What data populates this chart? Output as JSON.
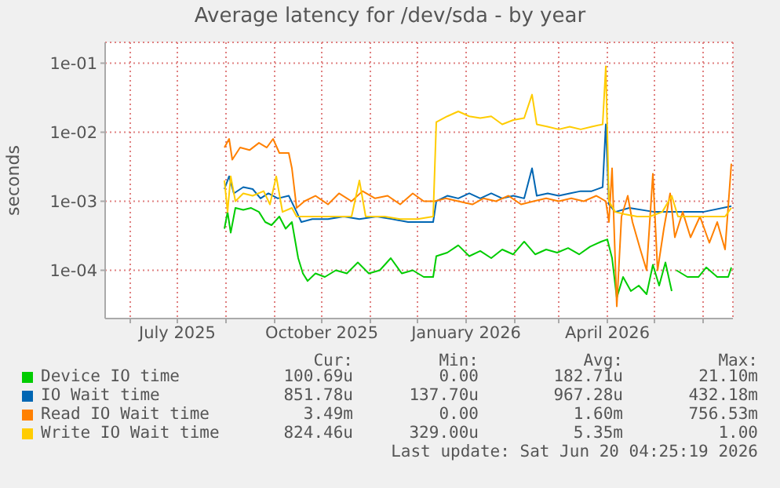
{
  "chart_data": {
    "type": "line",
    "title": "Average latency for /dev/sda - by year",
    "ylabel": "seconds",
    "log": "y",
    "grid": true,
    "legend": "bottom",
    "xlim": [
      "2025-05-16",
      "2026-06-20"
    ],
    "xticks": [
      {
        "value": "2025-06-01",
        "label": null
      },
      {
        "value": "2025-07-01",
        "label": "July 2025"
      },
      {
        "value": "2025-08-01",
        "label": null
      },
      {
        "value": "2025-09-01",
        "label": null
      },
      {
        "value": "2025-10-01",
        "label": "October 2025"
      },
      {
        "value": "2025-11-01",
        "label": null
      },
      {
        "value": "2025-12-01",
        "label": null
      },
      {
        "value": "2026-01-01",
        "label": "January 2026"
      },
      {
        "value": "2026-02-01",
        "label": null
      },
      {
        "value": "2026-03-01",
        "label": null
      },
      {
        "value": "2026-04-01",
        "label": "April 2026"
      },
      {
        "value": "2026-05-01",
        "label": null
      },
      {
        "value": "2026-06-01",
        "label": null
      }
    ],
    "ylim": [
      2e-05,
      0.2
    ],
    "yticks": [
      {
        "value": 0.1,
        "label": "1e-01"
      },
      {
        "value": 0.01,
        "label": "1e-02"
      },
      {
        "value": 0.001,
        "label": "1e-03"
      },
      {
        "value": 0.0001,
        "label": "1e-04"
      }
    ],
    "series": [
      {
        "name": "Device IO time",
        "color": "#00cc00",
        "x": [
          "2025-07-31",
          "2025-08-02",
          "2025-08-04",
          "2025-08-07",
          "2025-08-12",
          "2025-08-17",
          "2025-08-22",
          "2025-08-26",
          "2025-08-30",
          "2025-09-04",
          "2025-09-08",
          "2025-09-12",
          "2025-09-16",
          "2025-09-19",
          "2025-09-22",
          "2025-09-27",
          "2025-10-03",
          "2025-10-10",
          "2025-10-17",
          "2025-10-24",
          "2025-10-31",
          "2025-11-07",
          "2025-11-14",
          "2025-11-21",
          "2025-11-28",
          "2025-12-05",
          "2025-12-11",
          "2025-12-13",
          "2025-12-20",
          "2025-12-27",
          "2026-01-03",
          "2026-01-10",
          "2026-01-17",
          "2026-01-24",
          "2026-01-31",
          "2026-02-07",
          "2026-02-14",
          "2026-02-21",
          "2026-02-28",
          "2026-03-07",
          "2026-03-14",
          "2026-03-21",
          "2026-03-28",
          "2026-04-01",
          "2026-04-04",
          "2026-04-07",
          "2026-04-11",
          "2026-04-16",
          "2026-04-21",
          "2026-04-26",
          "2026-04-30",
          "2026-05-04",
          "2026-05-08",
          "2026-05-12",
          "2026-05-13",
          "2026-05-15",
          "2026-05-22",
          "2026-05-29",
          "2026-06-03",
          "2026-06-10",
          "2026-06-17",
          "2026-06-19"
        ],
        "values": [
          0.0004,
          0.0007,
          0.00035,
          0.0008,
          0.00075,
          0.0008,
          0.0007,
          0.0005,
          0.00045,
          0.0006,
          0.0004,
          0.0005,
          0.00015,
          9e-05,
          7e-05,
          9e-05,
          8e-05,
          0.0001,
          9e-05,
          0.00013,
          9e-05,
          0.0001,
          0.00015,
          9e-05,
          0.0001,
          8e-05,
          8e-05,
          0.00016,
          0.00018,
          0.00023,
          0.00016,
          0.00019,
          0.00015,
          0.0002,
          0.00017,
          0.00026,
          0.00017,
          0.0002,
          0.00018,
          0.00021,
          0.00017,
          0.00022,
          0.00026,
          0.00028,
          0.00015,
          4e-05,
          8e-05,
          5e-05,
          6e-05,
          4.5e-05,
          0.00012,
          6e-05,
          0.00013,
          5e-05,
          null,
          0.0001,
          8e-05,
          8e-05,
          0.00011,
          8e-05,
          8e-05,
          0.00011
        ]
      },
      {
        "name": "IO Wait time",
        "color": "#0066b3",
        "x": [
          "2025-07-31",
          "2025-08-03",
          "2025-08-06",
          "2025-08-12",
          "2025-08-18",
          "2025-08-23",
          "2025-08-28",
          "2025-09-03",
          "2025-09-10",
          "2025-09-15",
          "2025-09-18",
          "2025-09-25",
          "2025-10-05",
          "2025-10-15",
          "2025-10-25",
          "2025-11-05",
          "2025-11-15",
          "2025-11-25",
          "2025-12-05",
          "2025-12-11",
          "2025-12-13",
          "2025-12-20",
          "2025-12-27",
          "2026-01-03",
          "2026-01-10",
          "2026-01-17",
          "2026-01-24",
          "2026-01-31",
          "2026-02-07",
          "2026-02-12",
          "2026-02-15",
          "2026-02-22",
          "2026-03-01",
          "2026-03-08",
          "2026-03-15",
          "2026-03-22",
          "2026-03-29",
          "2026-03-31",
          "2026-04-02",
          "2026-04-06",
          "2026-04-15",
          "2026-05-01",
          "2026-05-15",
          "2026-06-01",
          "2026-06-19"
        ],
        "values": [
          0.0015,
          0.0023,
          0.0013,
          0.0016,
          0.0015,
          0.0011,
          0.0013,
          0.0011,
          0.0012,
          0.0007,
          0.0005,
          0.00055,
          0.00055,
          0.0006,
          0.00055,
          0.0006,
          0.00055,
          0.0005,
          0.0005,
          0.0005,
          0.001,
          0.0012,
          0.0011,
          0.0013,
          0.0011,
          0.0013,
          0.0011,
          0.0012,
          0.0011,
          0.003,
          0.0012,
          0.0013,
          0.0012,
          0.0013,
          0.0014,
          0.0014,
          0.0016,
          0.013,
          0.0009,
          0.0007,
          0.0008,
          0.0007,
          0.0007,
          0.0007,
          0.00085
        ]
      },
      {
        "name": "Read IO Wait time",
        "color": "#ff8000",
        "x": [
          "2025-07-31",
          "2025-08-03",
          "2025-08-05",
          "2025-08-10",
          "2025-08-16",
          "2025-08-22",
          "2025-08-27",
          "2025-08-31",
          "2025-09-04",
          "2025-09-10",
          "2025-09-12",
          "2025-09-15",
          "2025-09-20",
          "2025-09-27",
          "2025-10-05",
          "2025-10-12",
          "2025-10-20",
          "2025-10-27",
          "2025-11-04",
          "2025-11-12",
          "2025-11-20",
          "2025-11-28",
          "2025-12-05",
          "2025-12-12",
          "2025-12-19",
          "2025-12-27",
          "2026-01-05",
          "2026-01-12",
          "2026-01-20",
          "2026-01-28",
          "2026-02-05",
          "2026-02-13",
          "2026-02-21",
          "2026-03-01",
          "2026-03-09",
          "2026-03-17",
          "2026-03-25",
          "2026-03-31",
          "2026-04-02",
          "2026-04-04",
          "2026-04-07",
          "2026-04-10",
          "2026-04-14",
          "2026-04-17",
          "2026-04-22",
          "2026-04-26",
          "2026-04-30",
          "2026-05-03",
          "2026-05-07",
          "2026-05-11",
          "2026-05-14",
          "2026-05-19",
          "2026-05-24",
          "2026-05-30",
          "2026-06-05",
          "2026-06-10",
          "2026-06-15",
          "2026-06-19"
        ],
        "values": [
          0.006,
          0.008,
          0.004,
          0.006,
          0.0055,
          0.007,
          0.006,
          0.008,
          0.005,
          0.005,
          0.003,
          0.0008,
          0.001,
          0.0012,
          0.0009,
          0.0013,
          0.001,
          0.0014,
          0.0011,
          0.0012,
          0.0009,
          0.0013,
          0.001,
          0.001,
          0.0011,
          0.001,
          0.0009,
          0.0011,
          0.001,
          0.0012,
          0.0009,
          0.001,
          0.0011,
          0.001,
          0.0011,
          0.001,
          0.0012,
          0.001,
          0.0005,
          0.003,
          3e-05,
          0.0006,
          0.0012,
          0.0005,
          0.0002,
          0.0001,
          0.0025,
          0.0001,
          0.0004,
          0.0013,
          0.0003,
          0.0007,
          0.0003,
          0.0006,
          0.00025,
          0.0005,
          0.0002,
          0.0035
        ]
      },
      {
        "name": "Write IO Wait time",
        "color": "#ffcc00",
        "x": [
          "2025-07-31",
          "2025-08-02",
          "2025-08-04",
          "2025-08-07",
          "2025-08-12",
          "2025-08-18",
          "2025-08-25",
          "2025-08-29",
          "2025-09-02",
          "2025-09-06",
          "2025-09-12",
          "2025-09-15",
          "2025-09-20",
          "2025-09-30",
          "2025-10-10",
          "2025-10-20",
          "2025-10-25",
          "2025-10-29",
          "2025-11-10",
          "2025-11-20",
          "2025-12-01",
          "2025-12-11",
          "2025-12-13",
          "2025-12-20",
          "2025-12-27",
          "2026-01-03",
          "2026-01-10",
          "2026-01-17",
          "2026-01-24",
          "2026-01-31",
          "2026-02-07",
          "2026-02-12",
          "2026-02-15",
          "2026-02-22",
          "2026-03-01",
          "2026-03-08",
          "2026-03-15",
          "2026-03-22",
          "2026-03-29",
          "2026-03-31",
          "2026-04-02",
          "2026-04-06",
          "2026-04-12",
          "2026-04-20",
          "2026-04-28",
          "2026-05-06",
          "2026-05-12",
          "2026-05-16",
          "2026-05-25",
          "2026-06-05",
          "2026-06-15",
          "2026-06-19"
        ],
        "values": [
          0.002,
          0.0007,
          0.0023,
          0.001,
          0.0013,
          0.0012,
          0.0014,
          0.0009,
          0.0023,
          0.0007,
          0.0008,
          0.0006,
          0.0006,
          0.0006,
          0.0006,
          0.0006,
          0.002,
          0.0006,
          0.0006,
          0.00055,
          0.00055,
          0.0006,
          0.014,
          0.017,
          0.02,
          0.017,
          0.016,
          0.017,
          0.013,
          0.015,
          0.016,
          0.035,
          0.013,
          0.012,
          0.011,
          0.012,
          0.011,
          0.012,
          0.013,
          0.09,
          0.001,
          0.0007,
          0.00065,
          0.0006,
          0.0006,
          0.0007,
          0.0012,
          0.0006,
          0.0006,
          0.0006,
          0.0006,
          0.0008
        ]
      }
    ],
    "annotations": [
      "Cur:",
      "Min:",
      "Avg:",
      "Max:",
      "100.69u",
      "0.00",
      "182.71u",
      "21.10m",
      "851.78u",
      "137.70u",
      "967.28u",
      "432.18m",
      "3.49m",
      "0.00",
      "1.60m",
      "756.53m",
      "824.46u",
      "329.00u",
      "5.35m",
      "1.00",
      "Last update: Sat Jun 20 04:25:19 2026"
    ]
  }
}
